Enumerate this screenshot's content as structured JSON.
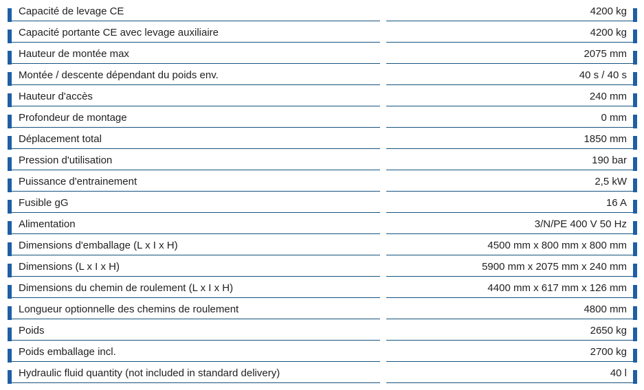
{
  "table": {
    "accent_bar_color": "#1e5fa5",
    "rule_color": "#14527c",
    "text_color": "#212121",
    "rows": [
      {
        "label": "Capacité de levage CE",
        "value": "4200 kg"
      },
      {
        "label": "Capacité portante CE avec levage auxiliaire",
        "value": "4200 kg"
      },
      {
        "label": "Hauteur de montée max",
        "value": "2075 mm"
      },
      {
        "label": "Montée / descente dépendant du poids env.",
        "value": "40 s / 40 s"
      },
      {
        "label": "Hauteur d'accès",
        "value": "240 mm"
      },
      {
        "label": "Profondeur de montage",
        "value": "0 mm"
      },
      {
        "label": "Déplacement total",
        "value": "1850 mm"
      },
      {
        "label": "Pression d'utilisation",
        "value": "190 bar"
      },
      {
        "label": "Puissance d'entrainement",
        "value": "2,5 kW"
      },
      {
        "label": "Fusible gG",
        "value": "16 A"
      },
      {
        "label": "Alimentation",
        "value": "3/N/PE 400 V 50 Hz"
      },
      {
        "label": "Dimensions d'emballage (L x I x H)",
        "value": "4500 mm x 800 mm x 800 mm"
      },
      {
        "label": "Dimensions (L x I x H)",
        "value": "5900 mm x 2075 mm x 240 mm"
      },
      {
        "label": "Dimensions du chemin de roulement (L x I x H)",
        "value": "4400 mm x 617 mm x 126 mm"
      },
      {
        "label": "Longueur optionnelle des chemins de roulement",
        "value": "4800 mm"
      },
      {
        "label": "Poids",
        "value": "2650 kg"
      },
      {
        "label": "Poids emballage incl.",
        "value": "2700 kg"
      },
      {
        "label": "Hydraulic fluid quantity (not included in standard delivery)",
        "value": "40 l"
      }
    ]
  }
}
